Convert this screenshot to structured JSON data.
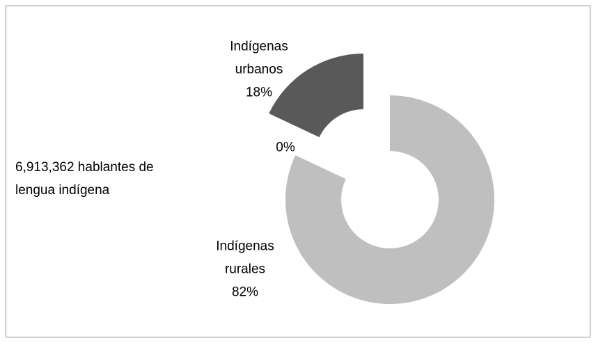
{
  "chart_data": {
    "type": "donut",
    "annotation": "6,913,362 hablantes de lengua indígena",
    "categories": [
      "Indígenas rurales",
      "Indígenas urbanos",
      null
    ],
    "values": [
      82,
      18,
      0
    ],
    "value_labels": [
      "82%",
      "18%",
      "0%"
    ],
    "colors": [
      "#bfbfbf",
      "#595959",
      "#808080"
    ]
  }
}
